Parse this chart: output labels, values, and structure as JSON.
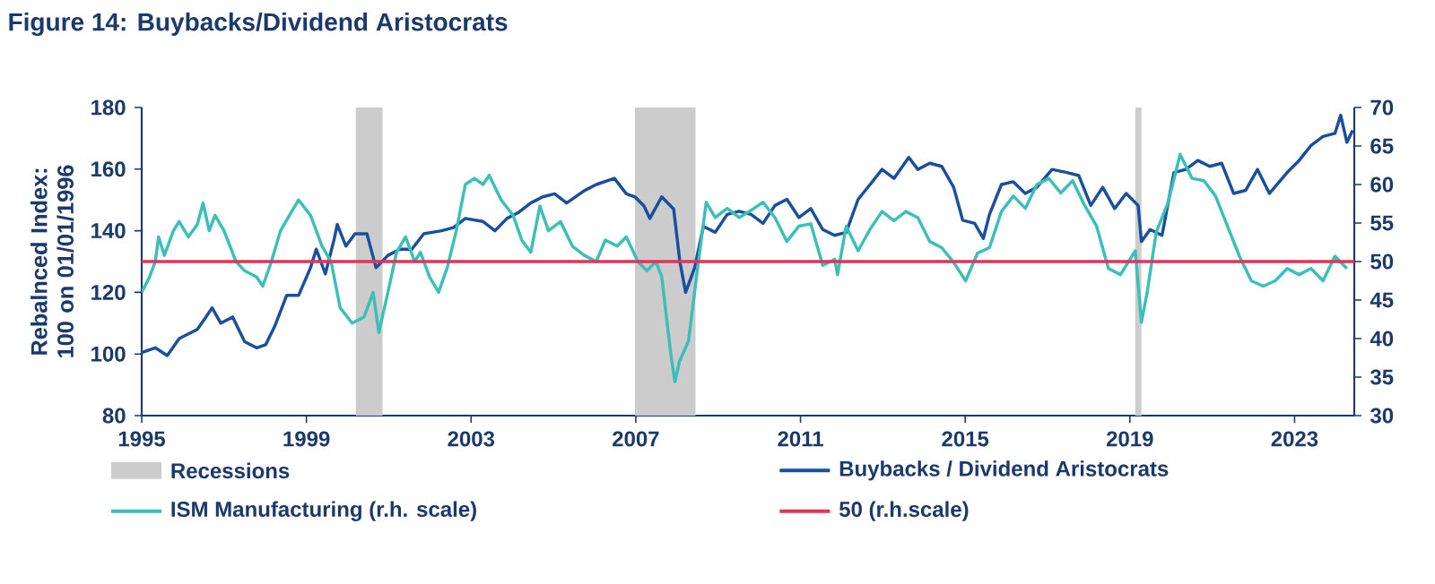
{
  "chart_data": {
    "type": "line",
    "title": "Figure 14: Buybacks/Dividend Aristocrats",
    "ylabel": "Rebalnced Index: 100 on 01/01/1996",
    "xlim": [
      1995,
      2024.45
    ],
    "xticks": [
      1995,
      1999,
      2003,
      2007,
      2011,
      2015,
      2019,
      2023
    ],
    "ylim": [
      80,
      180
    ],
    "yticks": [
      80,
      100,
      120,
      140,
      160,
      180
    ],
    "y2lim": [
      30,
      70
    ],
    "y2ticks": [
      30,
      35,
      40,
      45,
      50,
      55,
      60,
      65,
      70
    ],
    "legend": "bottom",
    "bands": [
      {
        "axis": "x",
        "from": 2000.2,
        "to": 2000.85,
        "label": "Recessions",
        "color": "#cccccc"
      },
      {
        "axis": "x",
        "from": 2006.98,
        "to": 2008.45,
        "color": "#cccccc"
      },
      {
        "axis": "x",
        "from": 2019.13,
        "to": 2019.28,
        "color": "#cccccc"
      }
    ],
    "ref_lines": [
      {
        "axis": "y2",
        "value": 50,
        "label": "50 (r.h.scale)",
        "color": "#e8305a"
      }
    ],
    "series": [
      {
        "name": "Buybacks / Dividend Aristocrats",
        "color": "#1a4fa0",
        "x": [
          1995.0,
          1995.33,
          1995.62,
          1995.91,
          1996.35,
          1996.56,
          1996.71,
          1996.92,
          1997.21,
          1997.5,
          1997.79,
          1998.01,
          1998.23,
          1998.52,
          1998.81,
          1999.1,
          1999.24,
          1999.46,
          1999.67,
          1999.75,
          1999.96,
          2000.18,
          2000.47,
          2000.69,
          2000.98,
          2001.27,
          2001.56,
          2001.85,
          2002.28,
          2002.57,
          2002.86,
          2003.29,
          2003.58,
          2003.87,
          2004.16,
          2004.45,
          2004.74,
          2005.03,
          2005.32,
          2005.75,
          2006.04,
          2006.48,
          2006.77,
          2006.98,
          2007.2,
          2007.34,
          2007.63,
          2007.92,
          2008.07,
          2008.21,
          2008.43,
          2008.64,
          2008.93,
          2009.22,
          2009.51,
          2009.8,
          2010.09,
          2010.38,
          2010.67,
          2010.96,
          2011.25,
          2011.54,
          2011.83,
          2012.11,
          2012.4,
          2012.69,
          2012.98,
          2013.27,
          2013.63,
          2013.85,
          2014.14,
          2014.43,
          2014.72,
          2014.94,
          2015.23,
          2015.44,
          2015.59,
          2015.88,
          2016.17,
          2016.46,
          2016.74,
          2017.11,
          2017.47,
          2017.76,
          2018.05,
          2018.34,
          2018.63,
          2018.91,
          2019.2,
          2019.28,
          2019.49,
          2019.78,
          2020.07,
          2020.36,
          2020.65,
          2020.94,
          2021.23,
          2021.52,
          2021.81,
          2022.1,
          2022.39,
          2022.82,
          2023.11,
          2023.4,
          2023.69,
          2023.98,
          2024.12,
          2024.27,
          2024.41
        ],
        "values": [
          100.5,
          102,
          99.5,
          105,
          108,
          112,
          115,
          110,
          112,
          104,
          102,
          103,
          109,
          119,
          119,
          128,
          134,
          126,
          137,
          142,
          135,
          139,
          139,
          128,
          132,
          134,
          134,
          139,
          140,
          141,
          144,
          143,
          140,
          144,
          146,
          149,
          151,
          152,
          149,
          153,
          155,
          157,
          152,
          151,
          148,
          144,
          151,
          147,
          130,
          120,
          128,
          141.4,
          139.5,
          145.3,
          146.3,
          145.3,
          142.4,
          148.2,
          150.2,
          144.3,
          147.2,
          140.4,
          138.5,
          139.5,
          150.2,
          155.0,
          159.9,
          157.0,
          163.8,
          159.9,
          161.9,
          160.9,
          154.1,
          143.4,
          142.4,
          137.5,
          145.3,
          155.0,
          155.9,
          152.1,
          154.1,
          159.9,
          158.9,
          157.9,
          148.2,
          154.1,
          147.2,
          152.1,
          148.2,
          136.5,
          140.4,
          138.5,
          158.9,
          159.9,
          162.8,
          160.9,
          161.9,
          152.1,
          153.1,
          159.9,
          152.1,
          158.9,
          162.8,
          167.7,
          170.6,
          171.6,
          177.5,
          168.7,
          172.6
        ]
      },
      {
        "name": "ISM Manufacturing (r.h. scale)",
        "color": "#3bbfb8",
        "axis": "y2",
        "x": [
          1995.0,
          1995.19,
          1995.33,
          1995.41,
          1995.55,
          1995.77,
          1995.91,
          1996.13,
          1996.35,
          1996.49,
          1996.64,
          1996.78,
          1997.0,
          1997.29,
          1997.5,
          1997.79,
          1997.94,
          1998.15,
          1998.37,
          1998.59,
          1998.81,
          1999.1,
          1999.38,
          1999.6,
          1999.82,
          2000.11,
          2000.4,
          2000.62,
          2000.76,
          2000.98,
          2001.19,
          2001.41,
          2001.63,
          2001.77,
          2001.99,
          2002.21,
          2002.42,
          2002.64,
          2002.86,
          2003.08,
          2003.29,
          2003.44,
          2003.73,
          2004.02,
          2004.23,
          2004.45,
          2004.67,
          2004.88,
          2005.17,
          2005.46,
          2005.75,
          2006.04,
          2006.26,
          2006.55,
          2006.77,
          2007.05,
          2007.27,
          2007.49,
          2007.63,
          2007.85,
          2007.95,
          2008.06,
          2008.28,
          2008.5,
          2008.71,
          2008.93,
          2009.22,
          2009.51,
          2009.87,
          2010.09,
          2010.38,
          2010.67,
          2010.96,
          2011.25,
          2011.54,
          2011.83,
          2011.9,
          2012.11,
          2012.4,
          2012.69,
          2012.98,
          2013.27,
          2013.56,
          2013.85,
          2014.14,
          2014.43,
          2014.72,
          2015.01,
          2015.3,
          2015.59,
          2015.88,
          2016.17,
          2016.46,
          2016.74,
          2017.03,
          2017.32,
          2017.61,
          2017.9,
          2018.19,
          2018.48,
          2018.77,
          2019.13,
          2019.28,
          2019.42,
          2019.64,
          2019.93,
          2020.22,
          2020.51,
          2020.8,
          2021.08,
          2021.37,
          2021.66,
          2021.95,
          2022.24,
          2022.53,
          2022.82,
          2023.11,
          2023.4,
          2023.69,
          2023.98,
          2024.27
        ],
        "values": [
          46,
          48,
          50,
          53.2,
          50.8,
          54,
          55.2,
          53.2,
          54.8,
          57.6,
          54,
          56,
          54,
          50,
          48.8,
          48,
          46.8,
          50,
          54,
          56,
          58,
          56,
          52,
          50,
          44,
          42,
          42.8,
          46,
          40.8,
          46,
          51.2,
          53.2,
          50,
          51.2,
          48,
          46,
          49.2,
          54,
          60,
          60.8,
          60,
          61.2,
          58,
          56,
          52.8,
          51.2,
          57.2,
          54,
          55.2,
          52,
          50.8,
          50,
          52.8,
          52,
          53.2,
          50,
          48.8,
          50,
          48,
          38,
          34.4,
          37.0,
          39.7,
          49.1,
          57.7,
          55.7,
          56.9,
          55.7,
          56.9,
          57.7,
          55.7,
          52.6,
          54.6,
          54.9,
          49.5,
          50.3,
          48.3,
          54.6,
          51.4,
          54.2,
          56.5,
          55.3,
          56.5,
          55.7,
          52.6,
          51.8,
          49.9,
          47.5,
          51.1,
          51.8,
          56.5,
          58.5,
          56.9,
          60.0,
          60.8,
          58.9,
          60.5,
          57.3,
          54.6,
          49.1,
          48.3,
          51.4,
          42.1,
          46.0,
          53.8,
          57.7,
          63.9,
          60.8,
          60.5,
          58.5,
          54.6,
          50.7,
          47.5,
          46.8,
          47.5,
          49.1,
          48.3,
          49.1,
          47.5,
          50.7,
          49.1
        ]
      }
    ]
  }
}
